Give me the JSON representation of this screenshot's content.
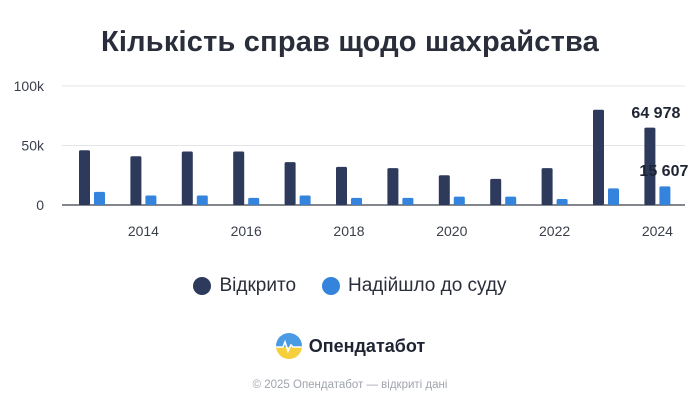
{
  "chart_data": {
    "type": "bar",
    "title": "Кількість справ щодо шахрайства",
    "categories": [
      2013,
      2014,
      2015,
      2016,
      2017,
      2018,
      2019,
      2020,
      2021,
      2022,
      2023,
      2024
    ],
    "x_tick_labels": [
      "2014",
      "2016",
      "2018",
      "2020",
      "2022",
      "2024"
    ],
    "ylim": [
      0,
      100000
    ],
    "y_tick_labels": [
      "0",
      "50k",
      "100k"
    ],
    "grid": true,
    "legend_position": "bottom",
    "series": [
      {
        "name": "Відкрито",
        "color": "#2d3a5c",
        "values": [
          46000,
          41000,
          45000,
          45000,
          36000,
          32000,
          31000,
          25000,
          22000,
          31000,
          80000,
          64978
        ]
      },
      {
        "name": "Надійшло до суду",
        "color": "#3483dc",
        "values": [
          11000,
          8000,
          8000,
          6000,
          8000,
          6000,
          6000,
          7000,
          7000,
          5000,
          14000,
          15607
        ]
      }
    ],
    "annotations": [
      "64 978",
      "15 607"
    ]
  },
  "branding": {
    "name": "Опендатабот"
  },
  "footer": {
    "text": "© 2025 Опендатабот — відкриті дані"
  }
}
